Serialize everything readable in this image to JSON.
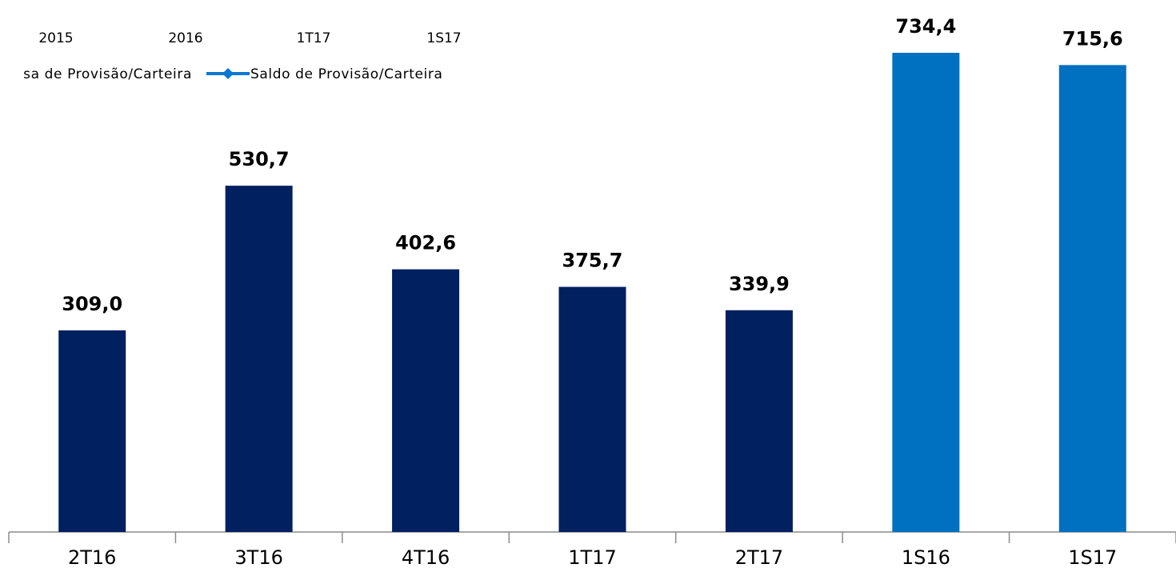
{
  "chart_data": {
    "type": "bar",
    "categories": [
      "2T16",
      "3T16",
      "4T16",
      "1T17",
      "2T17",
      "1S16",
      "1S17"
    ],
    "values": [
      309.0,
      530.7,
      402.6,
      375.7,
      339.9,
      734.4,
      715.6
    ],
    "value_labels": [
      "309,0",
      "530,7",
      "402,6",
      "375,7",
      "339,9",
      "734,4",
      "715,6"
    ],
    "colors": [
      "#002060",
      "#002060",
      "#002060",
      "#002060",
      "#002060",
      "#0070c0",
      "#0070c0"
    ],
    "header_texts": [
      "2015",
      "2016",
      "1T17",
      "1S17"
    ],
    "legend": [
      {
        "name": "sa de Provisão/Carteira"
      },
      {
        "name": "Saldo de Provisão/Carteira",
        "color": "#0a78d2"
      }
    ]
  }
}
